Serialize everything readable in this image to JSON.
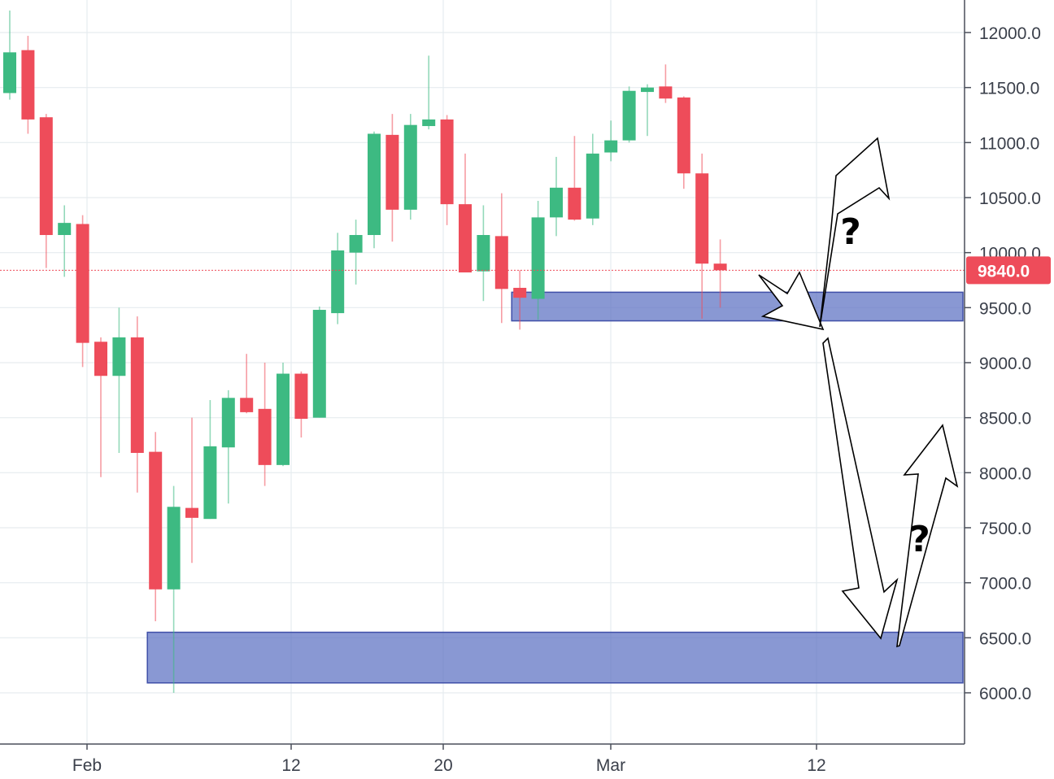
{
  "chart_data": {
    "type": "candlestick",
    "title": "",
    "xlabel": "",
    "ylabel": "",
    "ylim": [
      5500,
      12250
    ],
    "y_ticks": [
      "6000.0",
      "6500.0",
      "7000.0",
      "7500.0",
      "8000.0",
      "8500.0",
      "9000.0",
      "9500.0",
      "10000.0",
      "10500.0",
      "11000.0",
      "11500.0",
      "12000.0"
    ],
    "x_ticks": [
      "Feb",
      "12",
      "20",
      "Mar",
      "12"
    ],
    "grid": true,
    "colors": {
      "up": "#3dba82",
      "down": "#ee4c5a",
      "zone": "#5c70c2",
      "price_line": "#ee4c5a"
    },
    "current_price": {
      "value": 9840,
      "label": "9840.0"
    },
    "candles": [
      {
        "date": "Jan 28",
        "open": 11450,
        "high": 12200,
        "low": 11390,
        "close": 11820
      },
      {
        "date": "Jan 29",
        "open": 11840,
        "high": 11970,
        "low": 11080,
        "close": 11210
      },
      {
        "date": "Jan 30",
        "open": 11230,
        "high": 11260,
        "low": 9860,
        "close": 10160
      },
      {
        "date": "Jan 31",
        "open": 10160,
        "high": 10430,
        "low": 9780,
        "close": 10270
      },
      {
        "date": "Feb 1",
        "open": 10260,
        "high": 10340,
        "low": 8960,
        "close": 9180
      },
      {
        "date": "Feb 2",
        "open": 9190,
        "high": 9230,
        "low": 7960,
        "close": 8880
      },
      {
        "date": "Feb 3",
        "open": 8880,
        "high": 9500,
        "low": 8180,
        "close": 9230
      },
      {
        "date": "Feb 4",
        "open": 9230,
        "high": 9420,
        "low": 7820,
        "close": 8180
      },
      {
        "date": "Feb 5",
        "open": 8190,
        "high": 8370,
        "low": 6650,
        "close": 6940
      },
      {
        "date": "Feb 6",
        "open": 6940,
        "high": 7880,
        "low": 6000,
        "close": 7690
      },
      {
        "date": "Feb 7",
        "open": 7680,
        "high": 8500,
        "low": 7180,
        "close": 7590
      },
      {
        "date": "Feb 8",
        "open": 7580,
        "high": 8660,
        "low": 7580,
        "close": 8240
      },
      {
        "date": "Feb 9",
        "open": 8230,
        "high": 8750,
        "low": 7720,
        "close": 8680
      },
      {
        "date": "Feb 10",
        "open": 8680,
        "high": 9080,
        "low": 8540,
        "close": 8550
      },
      {
        "date": "Feb 11",
        "open": 8580,
        "high": 9000,
        "low": 7880,
        "close": 8070
      },
      {
        "date": "Feb 12",
        "open": 8070,
        "high": 9000,
        "low": 8060,
        "close": 8900
      },
      {
        "date": "Feb 13",
        "open": 8900,
        "high": 8920,
        "low": 8320,
        "close": 8490
      },
      {
        "date": "Feb 14",
        "open": 8500,
        "high": 9510,
        "low": 8500,
        "close": 9480
      },
      {
        "date": "Feb 15",
        "open": 9450,
        "high": 10180,
        "low": 9350,
        "close": 10020
      },
      {
        "date": "Feb 16",
        "open": 10000,
        "high": 10300,
        "low": 9710,
        "close": 10160
      },
      {
        "date": "Feb 17",
        "open": 10160,
        "high": 11100,
        "low": 10040,
        "close": 11080
      },
      {
        "date": "Feb 18",
        "open": 11070,
        "high": 11260,
        "low": 10100,
        "close": 10390
      },
      {
        "date": "Feb 19",
        "open": 10390,
        "high": 11260,
        "low": 10300,
        "close": 11160
      },
      {
        "date": "Feb 20",
        "open": 11150,
        "high": 11790,
        "low": 11120,
        "close": 11210
      },
      {
        "date": "Feb 21",
        "open": 11210,
        "high": 11250,
        "low": 10250,
        "close": 10440
      },
      {
        "date": "Feb 22",
        "open": 10440,
        "high": 10900,
        "low": 9820,
        "close": 9820
      },
      {
        "date": "Feb 23",
        "open": 9830,
        "high": 10430,
        "low": 9560,
        "close": 10160
      },
      {
        "date": "Feb 24",
        "open": 10150,
        "high": 10540,
        "low": 9360,
        "close": 9670
      },
      {
        "date": "Feb 25",
        "open": 9680,
        "high": 9840,
        "low": 9300,
        "close": 9590
      },
      {
        "date": "Feb 26",
        "open": 9580,
        "high": 10470,
        "low": 9390,
        "close": 10320
      },
      {
        "date": "Feb 27",
        "open": 10320,
        "high": 10870,
        "low": 10150,
        "close": 10590
      },
      {
        "date": "Feb 28",
        "open": 10590,
        "high": 11060,
        "low": 10290,
        "close": 10300
      },
      {
        "date": "Mar 1",
        "open": 10310,
        "high": 11080,
        "low": 10250,
        "close": 10900
      },
      {
        "date": "Mar 2",
        "open": 10910,
        "high": 11200,
        "low": 10830,
        "close": 11020
      },
      {
        "date": "Mar 3",
        "open": 11020,
        "high": 11510,
        "low": 11000,
        "close": 11470
      },
      {
        "date": "Mar 4",
        "open": 11460,
        "high": 11530,
        "low": 11060,
        "close": 11500
      },
      {
        "date": "Mar 5",
        "open": 11510,
        "high": 11710,
        "low": 11360,
        "close": 11400
      },
      {
        "date": "Mar 6",
        "open": 11410,
        "high": 11420,
        "low": 10580,
        "close": 10720
      },
      {
        "date": "Mar 7",
        "open": 10720,
        "high": 10900,
        "low": 9400,
        "close": 9900
      },
      {
        "date": "Mar 8",
        "open": 9900,
        "high": 10120,
        "low": 9500,
        "close": 9840
      }
    ],
    "zones": [
      {
        "from_date": "Feb 25",
        "to_date": "end",
        "low": 9380,
        "high": 9640
      },
      {
        "from_date": "Feb 5",
        "to_date": "end",
        "low": 6090,
        "high": 6550
      }
    ],
    "annotations": [
      {
        "type": "question-mark",
        "text": "?"
      },
      {
        "type": "question-mark",
        "text": "?"
      }
    ]
  }
}
